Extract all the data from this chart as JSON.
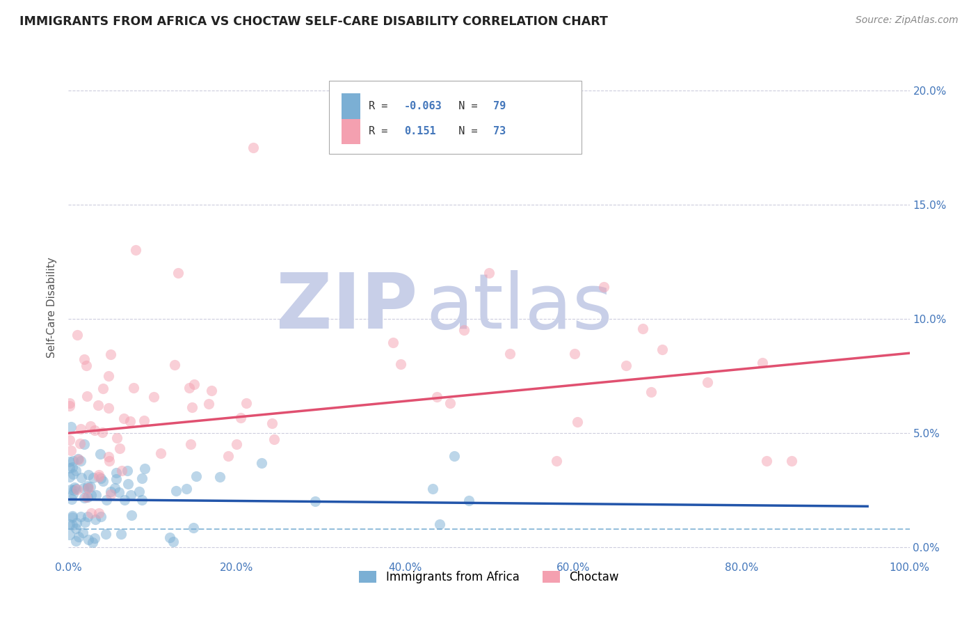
{
  "title": "IMMIGRANTS FROM AFRICA VS CHOCTAW SELF-CARE DISABILITY CORRELATION CHART",
  "source": "Source: ZipAtlas.com",
  "xlabel": "",
  "ylabel": "Self-Care Disability",
  "series1_label": "Immigrants from Africa",
  "series2_label": "Choctaw",
  "series1_color": "#7bafd4",
  "series2_color": "#f4a0b0",
  "series1_R": -0.063,
  "series1_N": 79,
  "series2_R": 0.151,
  "series2_N": 73,
  "xlim": [
    0,
    1.0
  ],
  "ylim": [
    -0.005,
    0.215
  ],
  "background_color": "#ffffff",
  "xticks": [
    0.0,
    0.2,
    0.4,
    0.6,
    0.8,
    1.0
  ],
  "xtick_labels": [
    "0.0%",
    "20.0%",
    "40.0%",
    "60.0%",
    "80.0%",
    "100.0%"
  ],
  "yticks": [
    0.0,
    0.05,
    0.1,
    0.15,
    0.2
  ],
  "ytick_labels_right": [
    "0.0%",
    "5.0%",
    "10.0%",
    "15.0%",
    "20.0%"
  ],
  "title_color": "#222222",
  "tick_color": "#4477bb",
  "grid_color": "#ccccdd",
  "watermark_color_zip": "#c8cfe8",
  "watermark_color_atlas": "#c8cfe8",
  "trendline1_x0": 0.0,
  "trendline1_y0": 0.021,
  "trendline1_x1": 0.95,
  "trendline1_y1": 0.018,
  "trendline2_x0": 0.0,
  "trendline2_y0": 0.05,
  "trendline2_x1": 1.0,
  "trendline2_y1": 0.085,
  "dash_line_y": 0.008,
  "dash_line_x0": 0.0,
  "dash_line_x1": 1.0
}
